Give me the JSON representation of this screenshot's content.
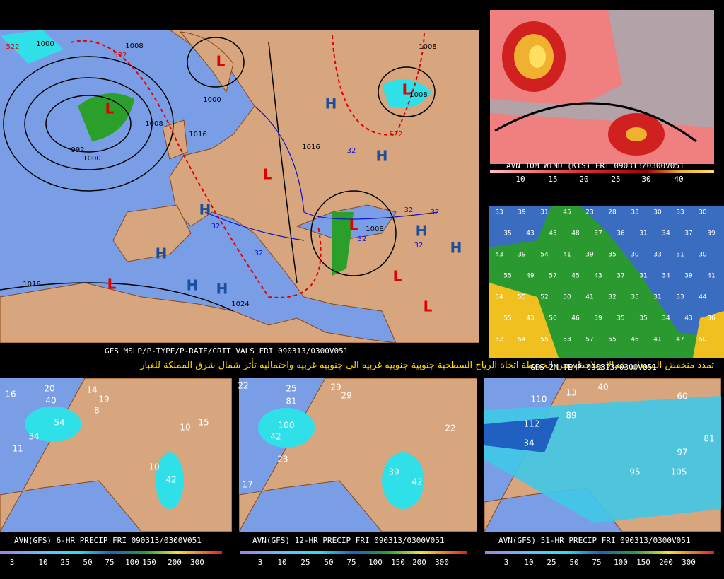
{
  "main_map": {
    "caption": "GFS MSLP/P-TYPE/P-RATE/CRIT VALS FRI 090313/0300V051",
    "lows": [
      "L",
      "L",
      "L",
      "L",
      "L",
      "L",
      "L",
      "L"
    ],
    "highs": [
      "H",
      "H",
      "H",
      "H",
      "H",
      "H",
      "H",
      "H"
    ],
    "isobar_labels": [
      1008,
      1000,
      1008,
      1008,
      1000,
      1008,
      1016,
      992,
      1000,
      1016,
      1008,
      1016,
      1024
    ],
    "thickness_labels": [
      522,
      522,
      522
    ],
    "blue_labels": [
      32,
      32,
      32,
      32,
      32,
      32,
      32
    ]
  },
  "headline": "تمدد منخفض السودان شمالا ويلاحظ يمين الخريطة اتجاة الرياح السطحية جنوبية جنوبيه غربيه الى جنوبيه غربيه واحتماليه تأثر شمال شرق المملكة للغبار",
  "wind_panel": {
    "caption": "AVN 10M WIND (KTS)  FRI 090313/0300V051",
    "scale": [
      10,
      15,
      20,
      25,
      30,
      40
    ]
  },
  "temp_panel": {
    "caption": "GFS 2M TEMP   090313/0300V051",
    "values": [
      33,
      39,
      31,
      45,
      23,
      28,
      33,
      30,
      33,
      30,
      35,
      43,
      45,
      48,
      37,
      36,
      31,
      34,
      37,
      39,
      43,
      39,
      54,
      41,
      39,
      35,
      30,
      33,
      31,
      30,
      55,
      49,
      57,
      45,
      43,
      37,
      31,
      34,
      39,
      41,
      54,
      55,
      52,
      50,
      41,
      32,
      35,
      31,
      33,
      44,
      55,
      43,
      50,
      46,
      39,
      35,
      35,
      34,
      43,
      36,
      52,
      54,
      55,
      53,
      57,
      55,
      46,
      41,
      47,
      50
    ]
  },
  "precip_panels": [
    {
      "caption": "AVN(GFS) 6-HR PRECIP FRI 090313/0300V051",
      "scale": [
        3,
        10,
        25,
        50,
        75,
        100,
        150,
        200,
        300
      ],
      "labels": [
        16,
        20,
        40,
        14,
        19,
        8,
        34,
        54,
        11,
        10,
        15,
        10,
        42
      ]
    },
    {
      "caption": "AVN(GFS) 12-HR PRECIP FRI 090313/0300V051",
      "scale": [
        3,
        10,
        25,
        50,
        75,
        100,
        150,
        200,
        300
      ],
      "labels": [
        22,
        25,
        81,
        29,
        29,
        100,
        42,
        23,
        17,
        22,
        39,
        42
      ]
    },
    {
      "caption": "AVN(GFS) 51-HR PRECIP FRI 090313/0300V051",
      "scale": [
        3,
        10,
        25,
        50,
        75,
        100,
        150,
        200,
        300
      ],
      "labels": [
        40,
        60,
        110,
        13,
        89,
        112,
        34,
        97,
        81,
        105,
        95
      ]
    }
  ]
}
